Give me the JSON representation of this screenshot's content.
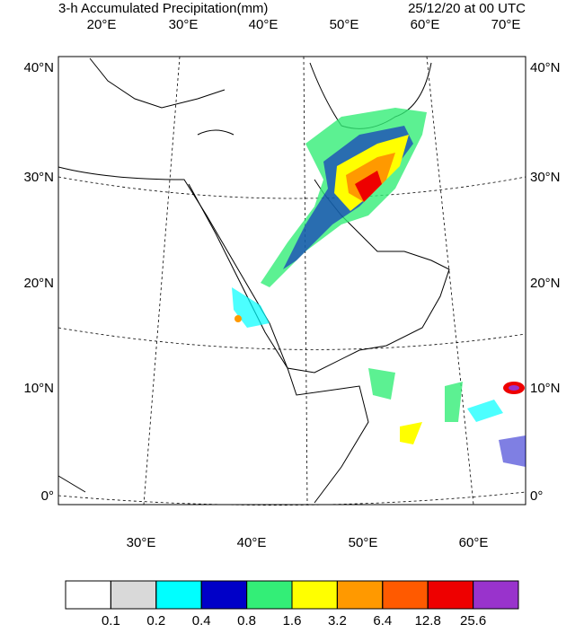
{
  "header": {
    "title": "3-h Accumulated Precipitation(mm)",
    "valid_time": "25/12/20 at 00 UTC"
  },
  "map": {
    "top_labels": [
      "20°E",
      "30°E",
      "40°E",
      "50°E",
      "60°E",
      "70°E"
    ],
    "left_labels": [
      "40°N",
      "30°N",
      "20°N",
      "10°N",
      "0°"
    ],
    "right_labels": [
      "40°N",
      "30°N",
      "20°N",
      "10°N",
      "0°"
    ],
    "bottom_labels": [
      "30°E",
      "40°E",
      "50°E",
      "60°E"
    ]
  },
  "colorbar": {
    "levels": [
      0.1,
      0.2,
      0.4,
      0.8,
      1.6,
      3.2,
      6.4,
      12.8,
      25.6
    ],
    "colors": [
      "#ffffff",
      "#d9d9d9",
      "#00ffff",
      "#0000c8",
      "#33ee77",
      "#ffff00",
      "#ff9900",
      "#ff5a00",
      "#ee0000",
      "#9933cc"
    ]
  }
}
